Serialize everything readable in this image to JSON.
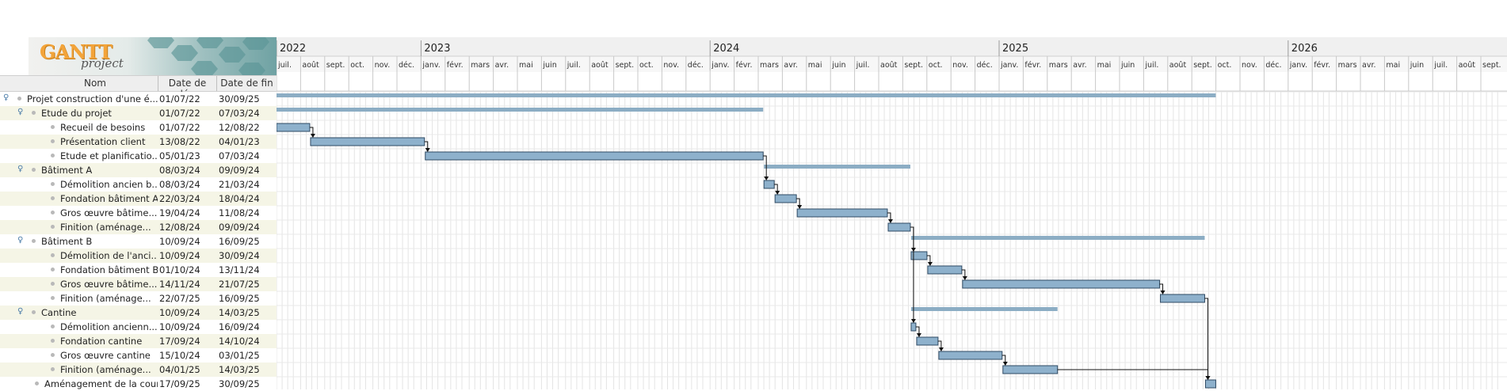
{
  "logo": {
    "text_main": "GANTT",
    "text_sub": "project"
  },
  "columns": {
    "name": "Nom",
    "start": "Date de dé...",
    "end": "Date de fin"
  },
  "timeline": {
    "years": [
      {
        "label": "2022",
        "month_index": 0
      },
      {
        "label": "2023",
        "month_index": 6
      },
      {
        "label": "2024",
        "month_index": 18
      },
      {
        "label": "2025",
        "month_index": 30
      },
      {
        "label": "2026",
        "month_index": 42
      }
    ],
    "months": [
      "juil.",
      "août",
      "sept.",
      "oct.",
      "nov.",
      "déc.",
      "janv.",
      "févr.",
      "mars",
      "avr.",
      "mai",
      "juin",
      "juil.",
      "août",
      "sept.",
      "oct.",
      "nov.",
      "déc.",
      "janv.",
      "févr.",
      "mars",
      "avr.",
      "mai",
      "juin",
      "juil.",
      "août",
      "sept.",
      "oct.",
      "nov.",
      "déc.",
      "janv.",
      "févr.",
      "mars",
      "avr.",
      "mai",
      "juin",
      "juil.",
      "août",
      "sept.",
      "oct.",
      "nov.",
      "déc.",
      "janv.",
      "févr.",
      "mars",
      "avr.",
      "mai",
      "juin",
      "juil.",
      "août",
      "sept."
    ]
  },
  "tasks": [
    {
      "name": "Projet construction d'une é...",
      "start": "01/07/22",
      "end": "30/09/25",
      "level": 0,
      "summary": true,
      "s": "2022-07-01",
      "e": "2025-09-30"
    },
    {
      "name": "Etude du projet",
      "start": "01/07/22",
      "end": "07/03/24",
      "level": 1,
      "summary": true,
      "s": "2022-07-01",
      "e": "2024-03-07"
    },
    {
      "name": "Recueil de besoins",
      "start": "01/07/22",
      "end": "12/08/22",
      "level": 2,
      "summary": false,
      "s": "2022-07-01",
      "e": "2022-08-12"
    },
    {
      "name": "Présentation client",
      "start": "13/08/22",
      "end": "04/01/23",
      "level": 2,
      "summary": false,
      "s": "2022-08-13",
      "e": "2023-01-04"
    },
    {
      "name": "Etude et planificatio...",
      "start": "05/01/23",
      "end": "07/03/24",
      "level": 2,
      "summary": false,
      "s": "2023-01-05",
      "e": "2024-03-07"
    },
    {
      "name": "Bâtiment A",
      "start": "08/03/24",
      "end": "09/09/24",
      "level": 1,
      "summary": true,
      "s": "2024-03-08",
      "e": "2024-09-09"
    },
    {
      "name": "Démolition ancien b...",
      "start": "08/03/24",
      "end": "21/03/24",
      "level": 2,
      "summary": false,
      "s": "2024-03-08",
      "e": "2024-03-21"
    },
    {
      "name": "Fondation bâtiment A",
      "start": "22/03/24",
      "end": "18/04/24",
      "level": 2,
      "summary": false,
      "s": "2024-03-22",
      "e": "2024-04-18"
    },
    {
      "name": "Gros œuvre bâtime...",
      "start": "19/04/24",
      "end": "11/08/24",
      "level": 2,
      "summary": false,
      "s": "2024-04-19",
      "e": "2024-08-11"
    },
    {
      "name": "Finition (aménage...",
      "start": "12/08/24",
      "end": "09/09/24",
      "level": 2,
      "summary": false,
      "s": "2024-08-12",
      "e": "2024-09-09"
    },
    {
      "name": "Bâtiment B",
      "start": "10/09/24",
      "end": "16/09/25",
      "level": 1,
      "summary": true,
      "s": "2024-09-10",
      "e": "2025-09-16"
    },
    {
      "name": "Démolition de l'anci...",
      "start": "10/09/24",
      "end": "30/09/24",
      "level": 2,
      "summary": false,
      "s": "2024-09-10",
      "e": "2024-09-30"
    },
    {
      "name": "Fondation bâtiment B",
      "start": "01/10/24",
      "end": "13/11/24",
      "level": 2,
      "summary": false,
      "s": "2024-10-01",
      "e": "2024-11-13"
    },
    {
      "name": "Gros œuvre bâtime...",
      "start": "14/11/24",
      "end": "21/07/25",
      "level": 2,
      "summary": false,
      "s": "2024-11-14",
      "e": "2025-07-21"
    },
    {
      "name": "Finition (aménage...",
      "start": "22/07/25",
      "end": "16/09/25",
      "level": 2,
      "summary": false,
      "s": "2025-07-22",
      "e": "2025-09-16"
    },
    {
      "name": "Cantine",
      "start": "10/09/24",
      "end": "14/03/25",
      "level": 1,
      "summary": true,
      "s": "2024-09-10",
      "e": "2025-03-14"
    },
    {
      "name": "Démolition ancienn...",
      "start": "10/09/24",
      "end": "16/09/24",
      "level": 2,
      "summary": false,
      "s": "2024-09-10",
      "e": "2024-09-16"
    },
    {
      "name": "Fondation cantine",
      "start": "17/09/24",
      "end": "14/10/24",
      "level": 2,
      "summary": false,
      "s": "2024-09-17",
      "e": "2024-10-14"
    },
    {
      "name": "Gros œuvre cantine",
      "start": "15/10/24",
      "end": "03/01/25",
      "level": 2,
      "summary": false,
      "s": "2024-10-15",
      "e": "2025-01-03"
    },
    {
      "name": "Finition (aménage...",
      "start": "04/01/25",
      "end": "14/03/25",
      "level": 2,
      "summary": false,
      "s": "2025-01-04",
      "e": "2025-03-14"
    },
    {
      "name": "Aménagement de la cour",
      "start": "17/09/25",
      "end": "30/09/25",
      "level": 1,
      "summary": false,
      "s": "2025-09-17",
      "e": "2025-09-30"
    }
  ],
  "dependencies": [
    [
      2,
      3
    ],
    [
      3,
      4
    ],
    [
      4,
      6
    ],
    [
      6,
      7
    ],
    [
      7,
      8
    ],
    [
      8,
      9
    ],
    [
      9,
      11
    ],
    [
      11,
      12
    ],
    [
      12,
      13
    ],
    [
      13,
      14
    ],
    [
      9,
      16
    ],
    [
      16,
      17
    ],
    [
      17,
      18
    ],
    [
      18,
      19
    ],
    [
      14,
      20
    ],
    [
      19,
      20
    ]
  ],
  "colors": {
    "bar_fill": "#8eb1cc",
    "bar_stroke": "#2f4a63",
    "summary": "#8cadc4",
    "grid": "#dadada",
    "expander": "#4a7ca8"
  }
}
